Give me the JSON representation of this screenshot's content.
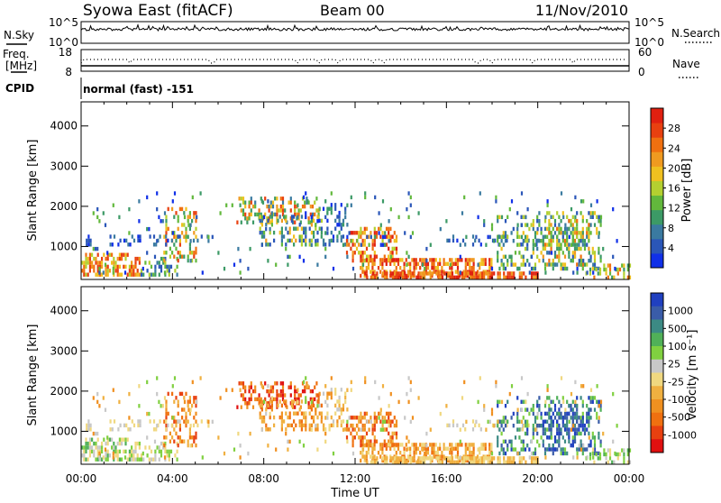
{
  "header": {
    "station": "Syowa East (fitACF)",
    "beam": "Beam 00",
    "date": "11/Nov/2010"
  },
  "top_panels": {
    "nsky_label": "N.Sky",
    "nsearch_label": "N.Search",
    "nsky_tick_high": "10^5",
    "nsky_tick_low": "10^0",
    "nsearch_tick_high": "10^5",
    "nsearch_tick_low": "10^0",
    "freq_label": "Freq.",
    "freq_unit": "[MHz]",
    "freq_tick_high": "18",
    "freq_tick_low": "8",
    "nave_label": "Nave",
    "nave_tick_high": "60",
    "nave_tick_low": "0",
    "cpid_label": "CPID",
    "cpid_value": "normal (fast) -151"
  },
  "x_axis": {
    "title": "Time UT",
    "ticks": [
      "00:00",
      "04:00",
      "08:00",
      "12:00",
      "16:00",
      "20:00",
      "00:00"
    ]
  },
  "chart_data": [
    {
      "type": "heatmap",
      "panel": "power",
      "ylabel": "Slant Range [km]",
      "ylim": [
        180,
        4600
      ],
      "xlim_hours": [
        0,
        24
      ],
      "yticks": [
        "1000",
        "2000",
        "3000",
        "4000"
      ],
      "colorbar_label": "Power [dB]",
      "colorbar_ticks": [
        "4",
        "8",
        "12",
        "16",
        "20",
        "24",
        "28"
      ],
      "colorbar_colors": [
        "#1030e8",
        "#2a56b8",
        "#3a7aa0",
        "#3c9a66",
        "#62b83c",
        "#b4d030",
        "#f0c020",
        "#f09a20",
        "#f07010",
        "#e84010",
        "#e02010"
      ]
    },
    {
      "type": "heatmap",
      "panel": "velocity",
      "ylabel": "Slant Range [km]",
      "ylim": [
        180,
        4600
      ],
      "xlim_hours": [
        0,
        24
      ],
      "yticks": [
        "1000",
        "2000",
        "3000",
        "4000"
      ],
      "colorbar_label": "Velocity [m s⁻¹]",
      "colorbar_ticks": [
        "1000",
        "500",
        "100",
        "25",
        "-25",
        "-100",
        "-500",
        "-1000"
      ],
      "colorbar_colors": [
        "#2040c0",
        "#3a5ca8",
        "#3c8a84",
        "#50b058",
        "#80d040",
        "#c8c8c8",
        "#f0d880",
        "#f0b040",
        "#f09020",
        "#f07010",
        "#e84010",
        "#e01010"
      ]
    }
  ]
}
